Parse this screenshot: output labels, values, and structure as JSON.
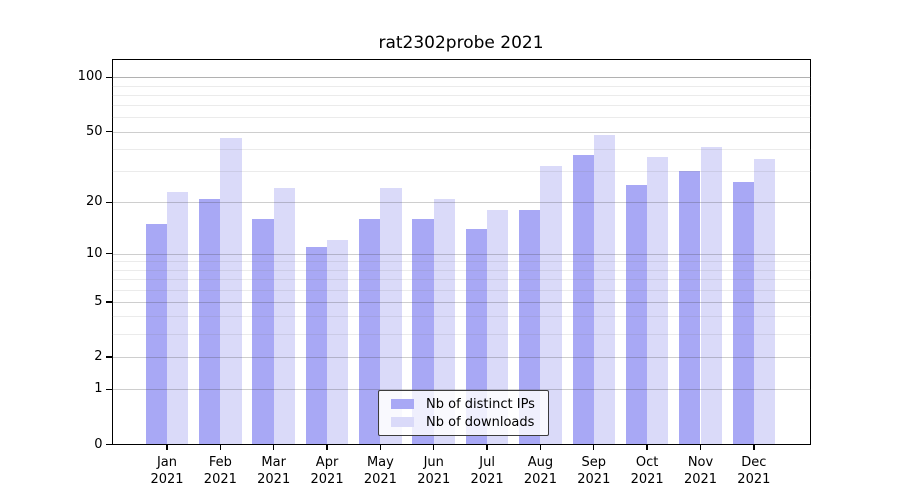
{
  "title": "rat2302probe 2021",
  "chart_data": {
    "type": "bar",
    "title": "rat2302probe 2021",
    "categories": [
      "Jan",
      "Feb",
      "Mar",
      "Apr",
      "May",
      "Jun",
      "Jul",
      "Aug",
      "Sep",
      "Oct",
      "Nov",
      "Dec"
    ],
    "x_tick_second_line": "2021",
    "series": [
      {
        "name": "Nb of distinct IPs",
        "color": "#a8a8f5",
        "values": [
          15,
          21,
          16,
          11,
          16,
          16,
          14,
          18,
          37,
          25,
          30,
          26
        ]
      },
      {
        "name": "Nb of downloads",
        "color": "#dadaf9",
        "values": [
          23,
          46,
          24,
          12,
          24,
          21,
          18,
          32,
          48,
          36,
          41,
          35
        ]
      }
    ],
    "yscale": "log1p",
    "ylim": [
      0,
      127
    ],
    "y_major_ticks": [
      0,
      1,
      2,
      5,
      10,
      20,
      50,
      100
    ],
    "y_minor_gridlines": [
      3,
      4,
      6,
      7,
      8,
      9,
      30,
      40,
      60,
      70,
      80,
      90
    ],
    "grid": "on",
    "legend_position": "lower center"
  }
}
